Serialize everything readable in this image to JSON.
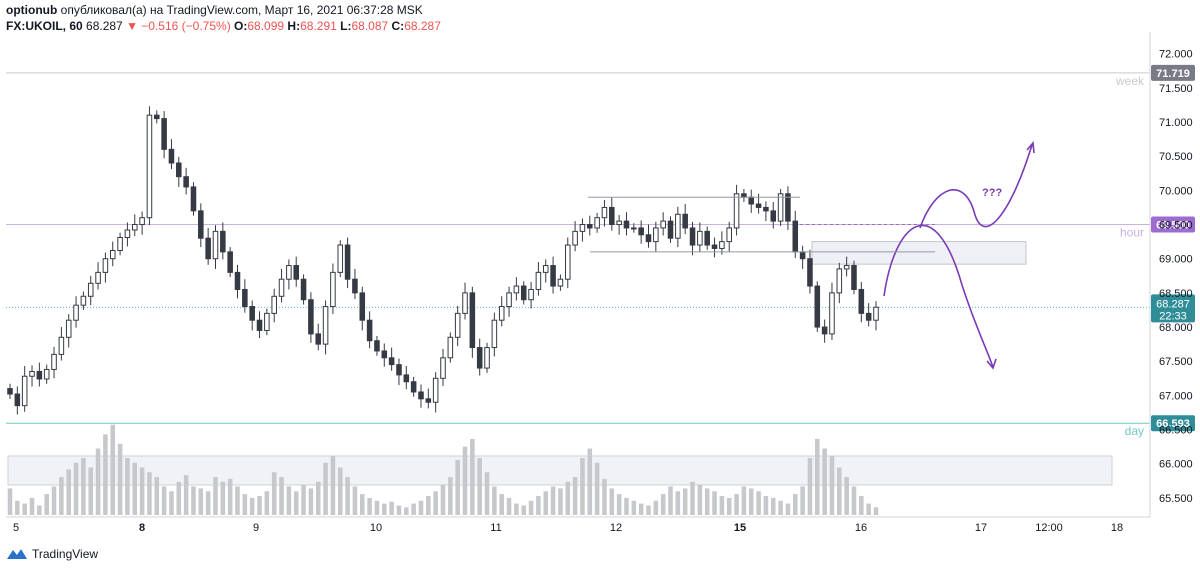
{
  "header": {
    "publisher": "optionub",
    "published_text": "опубликовал(а) на TradingView.com, Март 16, 2021 06:37:28 MSK",
    "symbol": "FX:UKOIL, 60",
    "last": "68.287",
    "change": "▼ −0.516 (−0.75%)",
    "o_label": "O:",
    "o_value": "68.099",
    "h_label": "H:",
    "h_value": "68.291",
    "l_label": "L:",
    "l_value": "68.087",
    "c_label": "C:",
    "c_value": "68.287"
  },
  "footer": {
    "brand": "TradingView",
    "logo_icon": "tradingview-logo-icon"
  },
  "colors": {
    "up_body": "#ffffff",
    "down_body": "#363a45",
    "wick": "#363a45",
    "volume": "#c7c8cb",
    "week_line": "#c9c9c9",
    "hour_line": "#c9b3e0",
    "day_line": "#6fc9c1",
    "price_badge": "#2f8d97",
    "hour_badge": "#9c6cd0",
    "week_badge": "#787b86",
    "arrow": "#7b3bb5",
    "zone_fill": "#eef0f5",
    "zone_border": "#c3c6cf"
  },
  "chart_data": {
    "type": "candlestick",
    "symbol": "FX:UKOIL, 60",
    "ylim": [
      65.25,
      72.2
    ],
    "x_tick_labels": [
      "5",
      "8",
      "9",
      "10",
      "11",
      "12",
      "15",
      "16",
      "17",
      "12:00",
      "18"
    ],
    "x_tick_bold": [
      "8",
      "15"
    ],
    "y_ticks": [
      65.5,
      66.0,
      66.5,
      67.0,
      67.5,
      68.0,
      68.5,
      69.0,
      69.5,
      70.0,
      70.5,
      71.0,
      71.5,
      72.0
    ],
    "y_tick_labels": [
      "65.500",
      "66.000",
      "66.500",
      "67.000",
      "67.500",
      "68.000",
      "68.500",
      "69.000",
      "69.500",
      "70.000",
      "70.500",
      "71.000",
      "71.500",
      "72.000"
    ],
    "levels": [
      {
        "label": "week",
        "value": 71.719,
        "value_text": "71.719",
        "color": "#c9c9c9",
        "badge": "#787b86"
      },
      {
        "label": "hour",
        "value": 69.5,
        "value_text": "69.500",
        "color": "#c9b3e0",
        "badge": "#9c6cd0"
      },
      {
        "label": "day",
        "value": 66.593,
        "value_text": "66.593",
        "color": "#6fc9c1",
        "badge": "#2f8d97"
      }
    ],
    "current_price": {
      "value": 68.287,
      "value_text": "68.287",
      "countdown": "22:33"
    },
    "annotation_text": "???",
    "candles_close": [
      67.02,
      66.85,
      67.28,
      67.35,
      67.24,
      67.38,
      67.6,
      67.85,
      68.1,
      68.32,
      68.45,
      68.64,
      68.8,
      69.0,
      69.12,
      69.31,
      69.42,
      69.5,
      69.6,
      71.1,
      71.05,
      70.6,
      70.4,
      70.2,
      70.05,
      69.7,
      69.3,
      69.0,
      69.4,
      69.1,
      68.8,
      68.55,
      68.3,
      68.1,
      67.95,
      68.2,
      68.45,
      68.7,
      68.9,
      68.7,
      68.4,
      67.9,
      67.75,
      68.3,
      68.8,
      69.2,
      68.7,
      68.5,
      68.1,
      67.8,
      67.65,
      67.55,
      67.45,
      67.3,
      67.2,
      67.05,
      66.95,
      66.9,
      67.25,
      67.55,
      67.85,
      68.2,
      68.5,
      67.7,
      67.4,
      67.7,
      68.1,
      68.3,
      68.5,
      68.6,
      68.4,
      68.55,
      68.8,
      68.9,
      68.6,
      68.7,
      69.2,
      69.4,
      69.5,
      69.45,
      69.6,
      69.75,
      69.5,
      69.55,
      69.45,
      69.45,
      69.35,
      69.25,
      69.45,
      69.55,
      69.3,
      69.65,
      69.45,
      69.2,
      69.4,
      69.2,
      69.15,
      69.25,
      69.45,
      69.95,
      69.9,
      69.8,
      69.75,
      69.7,
      69.55,
      69.95,
      69.55,
      69.1,
      69.0,
      68.6,
      68.0,
      67.9,
      68.5,
      68.85,
      68.9,
      68.55,
      68.2,
      68.1,
      68.29
    ],
    "volume_levels": [
      0.28,
      0.15,
      0.12,
      0.18,
      0.1,
      0.22,
      0.3,
      0.4,
      0.48,
      0.55,
      0.6,
      0.5,
      0.7,
      0.85,
      0.95,
      0.75,
      0.6,
      0.55,
      0.5,
      0.45,
      0.4,
      0.3,
      0.25,
      0.35,
      0.42,
      0.3,
      0.28,
      0.25,
      0.4,
      0.35,
      0.38,
      0.3,
      0.22,
      0.18,
      0.2,
      0.25,
      0.45,
      0.4,
      0.3,
      0.25,
      0.32,
      0.28,
      0.35,
      0.55,
      0.62,
      0.5,
      0.4,
      0.3,
      0.22,
      0.18,
      0.15,
      0.12,
      0.14,
      0.1,
      0.08,
      0.12,
      0.15,
      0.2,
      0.25,
      0.32,
      0.4,
      0.58,
      0.72,
      0.8,
      0.6,
      0.45,
      0.3,
      0.22,
      0.18,
      0.12,
      0.1,
      0.15,
      0.2,
      0.25,
      0.3,
      0.28,
      0.35,
      0.4,
      0.6,
      0.7,
      0.55,
      0.38,
      0.28,
      0.22,
      0.18,
      0.15,
      0.12,
      0.1,
      0.15,
      0.22,
      0.3,
      0.25,
      0.28,
      0.35,
      0.32,
      0.28,
      0.25,
      0.2,
      0.18,
      0.22,
      0.3,
      0.28,
      0.25,
      0.2,
      0.18,
      0.15,
      0.12,
      0.22,
      0.3,
      0.6,
      0.8,
      0.7,
      0.62,
      0.5,
      0.4,
      0.3,
      0.2,
      0.12,
      0.08
    ]
  }
}
